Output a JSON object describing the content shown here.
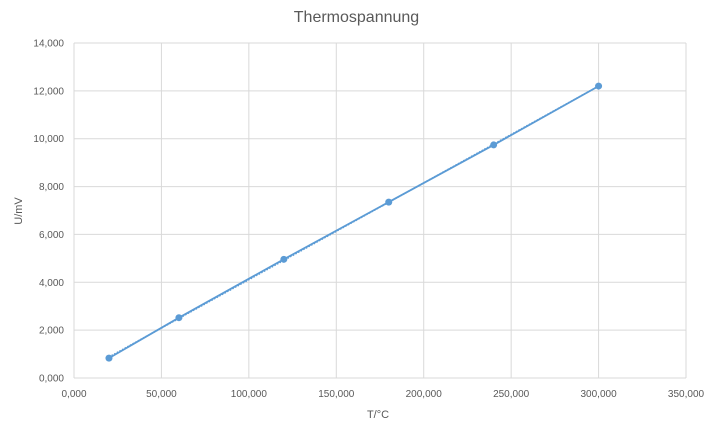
{
  "chart_data": {
    "type": "scatter",
    "title": "Thermospannung",
    "xlabel": "T/°C",
    "ylabel": "U/mV",
    "xlim": [
      0,
      350
    ],
    "ylim": [
      0,
      14
    ],
    "x_ticks": [
      "0,000",
      "50,000",
      "100,000",
      "150,000",
      "200,000",
      "250,000",
      "300,000",
      "350,000"
    ],
    "y_ticks": [
      "0,000",
      "2,000",
      "4,000",
      "6,000",
      "8,000",
      "10,000",
      "12,000",
      "14,000"
    ],
    "grid": true,
    "legend": "none",
    "trendline": "linear, dotted",
    "series": [
      {
        "x": [
          20,
          60,
          120,
          180,
          240,
          300
        ],
        "y": [
          0.83,
          2.52,
          4.96,
          7.35,
          9.74,
          12.2
        ],
        "color": "#5b9bd5"
      }
    ],
    "colors": {
      "series": "#5b9bd5",
      "grid": "#d9d9d9",
      "text": "#595959"
    }
  }
}
